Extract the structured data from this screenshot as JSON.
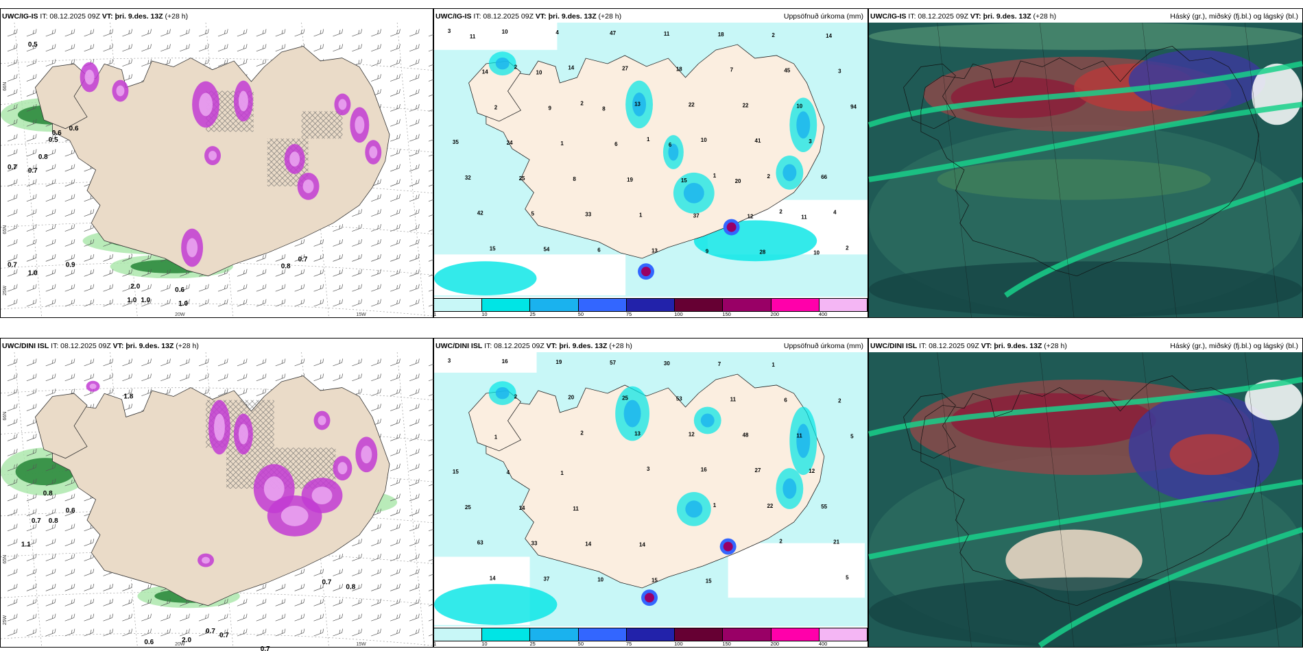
{
  "rows": [
    {
      "model": "UWC/IG-IS",
      "panels": [
        {
          "model": "UWC/IG-IS",
          "it": "IT: 08.12.2025 09Z",
          "vt_label": "VT:",
          "vt": "þri. 9.des. 13Z",
          "lead": "(+28 h)",
          "right_title": ""
        },
        {
          "model": "UWC/IG-IS",
          "it": "IT: 08.12.2025 09Z",
          "vt_label": "VT:",
          "vt": "þri. 9.des. 13Z",
          "lead": "(+28 h)",
          "right_title": "Uppsöfnuð úrkoma (mm)"
        },
        {
          "model": "UWC/IG-IS",
          "it": "IT: 08.12.2025 09Z",
          "vt_label": "VT:",
          "vt": "þri. 9.des. 13Z",
          "lead": "(+28 h)",
          "right_title": "Háský (gr.), miðský (fj.bl.) og lágský (bl.)"
        }
      ],
      "precip_labels": [
        "3",
        "2",
        "2",
        "1",
        "1",
        "2",
        "2",
        "10",
        "14",
        "13",
        "10",
        "2",
        "4",
        "15",
        "4",
        "27",
        "22",
        "41",
        "66",
        "42",
        "54",
        "47",
        "18",
        "22",
        "3",
        "32",
        "5",
        "6",
        "11",
        "7",
        "10",
        "35",
        "25",
        "33",
        "13",
        "18",
        "45",
        "94",
        "24",
        "8",
        "1",
        "9",
        "2",
        "3",
        "2",
        "1",
        "19",
        "37",
        "28",
        "14",
        "14",
        "9",
        "6",
        "15",
        "12",
        "10",
        "11",
        "10",
        "8",
        "6",
        "20",
        "11"
      ],
      "wind_labels": [
        "0.5",
        "0.6",
        "0.5",
        "0.7",
        "0.8",
        "0.7",
        "0.7",
        "0.9",
        "1.0",
        "0.6",
        "1.0",
        "2.0",
        "1.0",
        "0.7",
        "0.8",
        "0.6",
        "1.0"
      ],
      "axis_labels": [
        "66N",
        "65N",
        "25W",
        "20W",
        "15W"
      ]
    },
    {
      "model": "UWC/DINI ISL",
      "panels": [
        {
          "model": "UWC/DINI ISL",
          "it": "IT: 08.12.2025 09Z",
          "vt_label": "VT:",
          "vt": "þri. 9.des. 13Z",
          "lead": "(+28 h)",
          "right_title": ""
        },
        {
          "model": "UWC/DINI ISL",
          "it": "IT: 08.12.2025 09Z",
          "vt_label": "VT:",
          "vt": "þri. 9.des. 13Z",
          "lead": "(+28 h)",
          "right_title": "Uppsöfnuð úrkoma (mm)"
        },
        {
          "model": "UWC/DINI ISL",
          "it": "IT: 08.12.2025 09Z",
          "vt_label": "VT:",
          "vt": "þri. 9.des. 13Z",
          "lead": "(+28 h)",
          "right_title": "Háský (gr.), miðský (fj.bl.) og lágský (bl.)"
        }
      ],
      "precip_labels": [
        "3",
        "2",
        "2",
        "3",
        "1",
        "2",
        "5",
        "16",
        "20",
        "13",
        "16",
        "22",
        "21",
        "14",
        "19",
        "25",
        "12",
        "27",
        "55",
        "63",
        "37",
        "57",
        "53",
        "48",
        "12",
        "25",
        "33",
        "10",
        "30",
        "11",
        "11",
        "15",
        "14",
        "14",
        "15",
        "7",
        "6",
        "5",
        "4",
        "11",
        "14",
        "15",
        "1",
        "2",
        "1",
        "1"
      ],
      "wind_labels": [
        "1.8",
        "0.8",
        "0.6",
        "0.7",
        "0.8",
        "1.1",
        "0.7",
        "0.8",
        "0.6",
        "0.7",
        "0.7",
        "2.0",
        "0.7"
      ],
      "axis_labels": [
        "66N",
        "65N",
        "25W",
        "20W",
        "15W"
      ]
    }
  ],
  "colorbar": {
    "ticks": [
      "1",
      "10",
      "25",
      "50",
      "75",
      "100",
      "150",
      "200",
      "400"
    ],
    "colors": [
      "#c8f7f7",
      "#00e5e5",
      "#1ab2ee",
      "#3366ff",
      "#2222aa",
      "#660033",
      "#990066",
      "#ff00aa",
      "#f4b6f4"
    ]
  }
}
